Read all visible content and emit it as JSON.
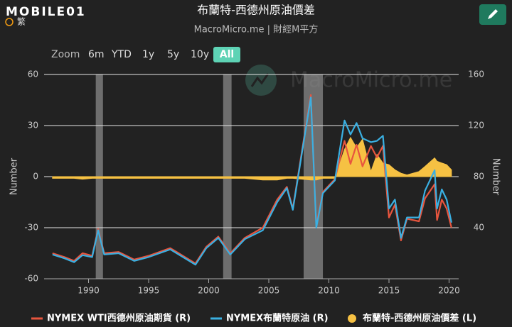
{
  "header": {
    "logo": "MOBILE01",
    "language": "繁"
  },
  "watermark": "MacroMicro.me",
  "zoom": {
    "label": "Zoom",
    "buttons": [
      "6m",
      "YTD",
      "1y",
      "5y",
      "10y",
      "All"
    ],
    "active": "All"
  },
  "chart_data": {
    "type": "line",
    "title": "布蘭特-西德州原油價差",
    "subtitle": "MacroMicro.me | 財經M平方",
    "ylabel": "Number",
    "y2label": "Number",
    "x": [
      1987.0,
      1988.0,
      1988.8,
      1989.5,
      1990.3,
      1990.8,
      1991.3,
      1992.5,
      1993.8,
      1995.0,
      1996.8,
      1997.5,
      1998.9,
      1999.8,
      2000.8,
      2001.8,
      2003.0,
      2004.5,
      2005.7,
      2006.5,
      2007.0,
      2008.5,
      2008.95,
      2009.5,
      2010.5,
      2011.3,
      2011.8,
      2012.3,
      2012.8,
      2013.5,
      2014.0,
      2014.5,
      2015.0,
      2015.5,
      2016.0,
      2016.5,
      2017.5,
      2018.0,
      2018.8,
      2019.0,
      2019.4,
      2019.8,
      2020.2
    ],
    "series": [
      {
        "name": "NYMEX WTI西德州原油期貨 (R)",
        "color": "#e8553e",
        "axis": "y2",
        "style": "line",
        "values": [
          20,
          17,
          14,
          20,
          18,
          39,
          20,
          21,
          15,
          18,
          24,
          20,
          12,
          25,
          33,
          20,
          32,
          40,
          62,
          72,
          55,
          144,
          42,
          68,
          78,
          108,
          90,
          105,
          88,
          104,
          95,
          104,
          48,
          58,
          30,
          47,
          45,
          63,
          74,
          46,
          62,
          55,
          40
        ]
      },
      {
        "name": "NYMEX布蘭特原油 (R)",
        "color": "#3ab0e2",
        "axis": "y2",
        "style": "line",
        "values": [
          19,
          16,
          13,
          18.5,
          17,
          38,
          19,
          20,
          14,
          17,
          23,
          19,
          11,
          24,
          32,
          19,
          31,
          38,
          60,
          71,
          54,
          142,
          40,
          67,
          77,
          124,
          113,
          122,
          110,
          107,
          108,
          112,
          55,
          62,
          32,
          48,
          48,
          69,
          85,
          55,
          70,
          62,
          44
        ]
      },
      {
        "name": "布蘭特-西德州原油價差 (L)",
        "color": "#f6c143",
        "axis": "y",
        "style": "area",
        "values": [
          -1,
          -1,
          -1,
          -1.5,
          -1,
          -1,
          -1,
          -1,
          -1,
          -1,
          -1,
          -1,
          -1,
          -1,
          -1,
          -1,
          -1,
          -2,
          -2,
          -1,
          -1,
          -2,
          -2,
          -1,
          -1,
          16,
          23,
          17,
          22,
          3,
          13,
          8,
          7,
          4,
          2,
          1,
          3,
          6,
          11,
          9,
          8,
          7,
          4
        ]
      }
    ],
    "recessions": [
      [
        1990.6,
        1991.2
      ],
      [
        2001.2,
        2001.9
      ],
      [
        2007.9,
        2009.5
      ]
    ],
    "recession_color": "#888888",
    "xlim": [
      1986.3,
      2020.8
    ],
    "xticks": [
      1990,
      1995,
      2000,
      2005,
      2010,
      2015,
      2020
    ],
    "ylim": [
      -60,
      60
    ],
    "yticks": [
      -60,
      -30,
      0,
      30,
      60
    ],
    "y2lim": [
      0,
      160
    ],
    "y2ticks": [
      40,
      80,
      120,
      160
    ],
    "grid": true
  }
}
